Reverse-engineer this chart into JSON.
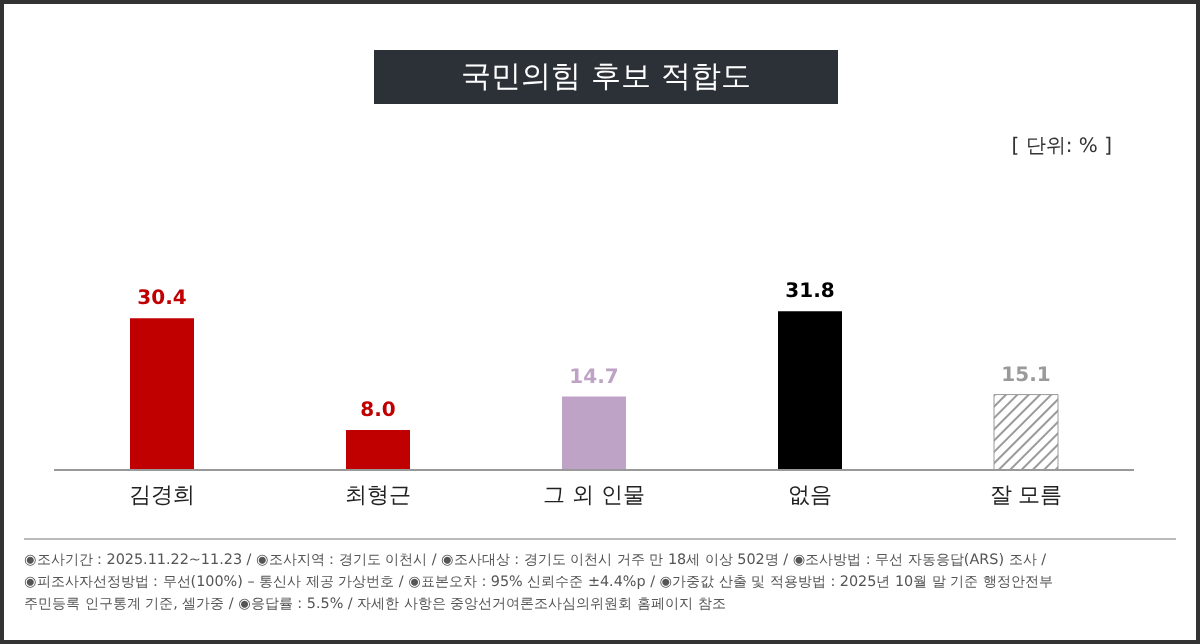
{
  "chart_data": {
    "type": "bar",
    "title": "국민의힘 후보 적합도",
    "categories": [
      "김경희",
      "최형근",
      "그 외 인물",
      "없음",
      "잘 모름"
    ],
    "values": [
      30.4,
      8.0,
      14.7,
      31.8,
      15.1
    ],
    "colors": [
      "#c00000",
      "#c00000",
      "#bfa3c6",
      "#000000",
      "#9a9a9a"
    ],
    "tick_labels": "x",
    "value_labels": [
      "30.4",
      "8.0",
      "14.7",
      "31.8",
      "15.1"
    ],
    "annotations": [
      "[ 단위: % ]",
      "◉조사기간 : 2025.11.22~11.23 / ◉조사지역 : 경기도 이천시 / ◉조사대상 : 경기도 이천시 거주 만 18세 이상 502명 / ◉조사방법 : 무선 자동응답(ARS) 조사 /",
      "◉피조사자선정방법 : 무선(100%) – 통신사 제공 가상번호 / ◉표본오차 : 95% 신뢰수준 ±4.4%p / ◉가중값 산출 및 적용방법 : 2025년 10월 말 기준 행정안전부",
      "주민등록 인구통계 기준, 셀가중 / ◉응답률 : 5.5% / 자세한 사항은 중앙선거여론조사심의위원회 홈페이지 참조"
    ]
  }
}
